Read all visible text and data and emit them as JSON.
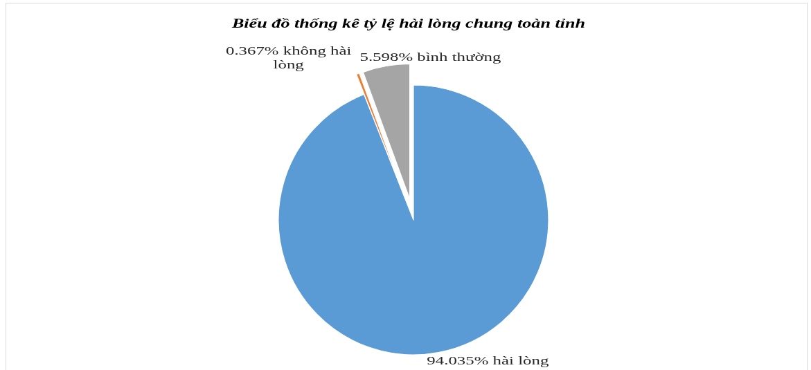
{
  "chart_data": {
    "type": "pie",
    "title": "Biểu đồ thống kê tỷ lệ hài lòng chung toàn tỉnh",
    "categories": [
      "hài lòng",
      "không hài lòng",
      "bình thường"
    ],
    "values": [
      94.035,
      0.367,
      5.598
    ],
    "colors": [
      "#5b9bd5",
      "#ed7d31",
      "#a5a5a5"
    ],
    "value_labels": [
      "94.035%",
      "0.367%",
      "5.598%"
    ]
  }
}
